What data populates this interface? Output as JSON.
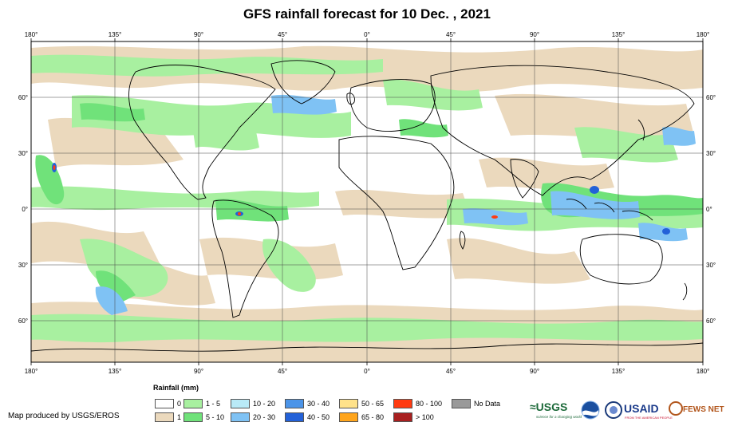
{
  "title": "GFS rainfall forecast for 10 Dec. , 2021",
  "lon_labels": [
    "180°",
    "135°",
    "90°",
    "45°",
    "0°",
    "45°",
    "90°",
    "135°",
    "180°"
  ],
  "lat_labels": [
    "60°",
    "30°",
    "0°",
    "30°",
    "60°"
  ],
  "legend": {
    "title": "Rainfall (mm)",
    "items": [
      {
        "label": "0",
        "color": "#ffffff"
      },
      {
        "label": "1",
        "color": "#ebd9bd"
      },
      {
        "label": "1 - 5",
        "color": "#a8f0a0"
      },
      {
        "label": "5 - 10",
        "color": "#70e27a"
      },
      {
        "label": "10 - 20",
        "color": "#b9eaf7"
      },
      {
        "label": "20 - 30",
        "color": "#7fc2f4"
      },
      {
        "label": "30 - 40",
        "color": "#4b94e8"
      },
      {
        "label": "40 - 50",
        "color": "#2361d8"
      },
      {
        "label": "50 - 65",
        "color": "#ffe28a"
      },
      {
        "label": "65 - 80",
        "color": "#ffa51c"
      },
      {
        "label": "80 - 100",
        "color": "#ff3a10"
      },
      {
        "label": "> 100",
        "color": "#a82020"
      },
      {
        "label": "No Data",
        "color": "#999999"
      }
    ]
  },
  "credit": "Map produced by USGS/EROS",
  "logos": {
    "usgs": "≈USGS",
    "usgs_tagline": "science for a changing world",
    "usaid": "USAID",
    "usaid_tagline": "FROM THE AMERICAN PEOPLE",
    "fewsnet": "FEWS NET"
  }
}
